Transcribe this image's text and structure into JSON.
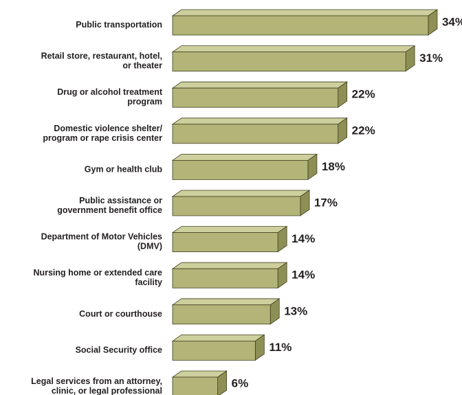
{
  "chart_data": {
    "type": "bar",
    "orientation": "horizontal",
    "title": "",
    "xlabel": "",
    "ylabel": "",
    "xlim": [
      0,
      34
    ],
    "grid": false,
    "legend": "none",
    "value_suffix": "%",
    "categories": [
      [
        "Public transportation"
      ],
      [
        "Retail store, restaurant, hotel,",
        "or theater"
      ],
      [
        "Drug or alcohol treatment",
        "program"
      ],
      [
        "Domestic violence shelter/",
        "program or rape crisis center"
      ],
      [
        "Gym or health club"
      ],
      [
        "Public assistance or",
        "government benefit office"
      ],
      [
        "Department of Motor Vehicles",
        "(DMV)"
      ],
      [
        "Nursing home or extended care",
        "facility"
      ],
      [
        "Court or courthouse"
      ],
      [
        "Social Security office"
      ],
      [
        "Legal services from an attorney,",
        "clinic, or legal professional"
      ]
    ],
    "values": [
      34,
      31,
      22,
      22,
      18,
      17,
      14,
      14,
      13,
      11,
      6
    ],
    "colors": {
      "front": "#b3b478",
      "top": "#cdcf9c",
      "side": "#8e8f55",
      "edge": "#3f4020"
    }
  }
}
